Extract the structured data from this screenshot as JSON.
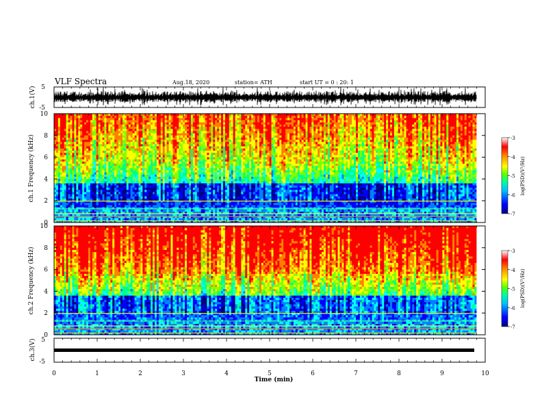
{
  "header": {
    "title": "VLF Spectra",
    "date": "Aug.18, 2020",
    "station": "station= ATH",
    "start": "start UT =  0 : 20: 1"
  },
  "chart_data": [
    {
      "type": "line",
      "name": "ch1-waveform",
      "ylabel": "ch.1(V)",
      "ylim": [
        -5,
        5
      ],
      "yticks": [
        "5",
        "-5"
      ],
      "xlim": [
        0,
        10
      ],
      "data_extent_min": [
        0,
        9.8
      ]
    },
    {
      "type": "heatmap",
      "name": "ch1-spectrogram",
      "ylabel": "ch.1  Frequency (kHz)",
      "xlim": [
        0,
        10
      ],
      "ylim": [
        0,
        10
      ],
      "yticks": [
        "0",
        "2",
        "4",
        "6",
        "8",
        "10"
      ],
      "colorbar": {
        "label": "log(PSD)(V²/Hz)",
        "range": [
          -7,
          -3
        ],
        "ticks": [
          "-3",
          "-4",
          "-5",
          "-6",
          "-7"
        ]
      }
    },
    {
      "type": "heatmap",
      "name": "ch2-spectrogram",
      "ylabel": "ch.2  Frequency (kHz)",
      "xlim": [
        0,
        10
      ],
      "ylim": [
        0,
        10
      ],
      "yticks": [
        "0",
        "2",
        "4",
        "6",
        "8",
        "10"
      ],
      "colorbar": {
        "label": "log(PSD)(V²/Hz)",
        "range": [
          -7,
          -3
        ],
        "ticks": [
          "-3",
          "-4",
          "-5",
          "-6",
          "-7"
        ]
      }
    },
    {
      "type": "line",
      "name": "ch3-waveform",
      "ylabel": "ch.3(V)",
      "ylim": [
        -5,
        5
      ],
      "yticks": [
        "5",
        "-5"
      ],
      "xlim": [
        0,
        10
      ],
      "baseline_value": 0
    }
  ],
  "xaxis": {
    "label": "Time (min)",
    "ticks": [
      "0",
      "1",
      "2",
      "3",
      "4",
      "5",
      "6",
      "7",
      "8",
      "9",
      "10"
    ]
  },
  "colors": {
    "colormap": [
      "#000080",
      "#0000ff",
      "#0080ff",
      "#00ffff",
      "#00ff80",
      "#80ff00",
      "#ffff00",
      "#ff8000",
      "#ff0000",
      "#ffffff"
    ]
  }
}
